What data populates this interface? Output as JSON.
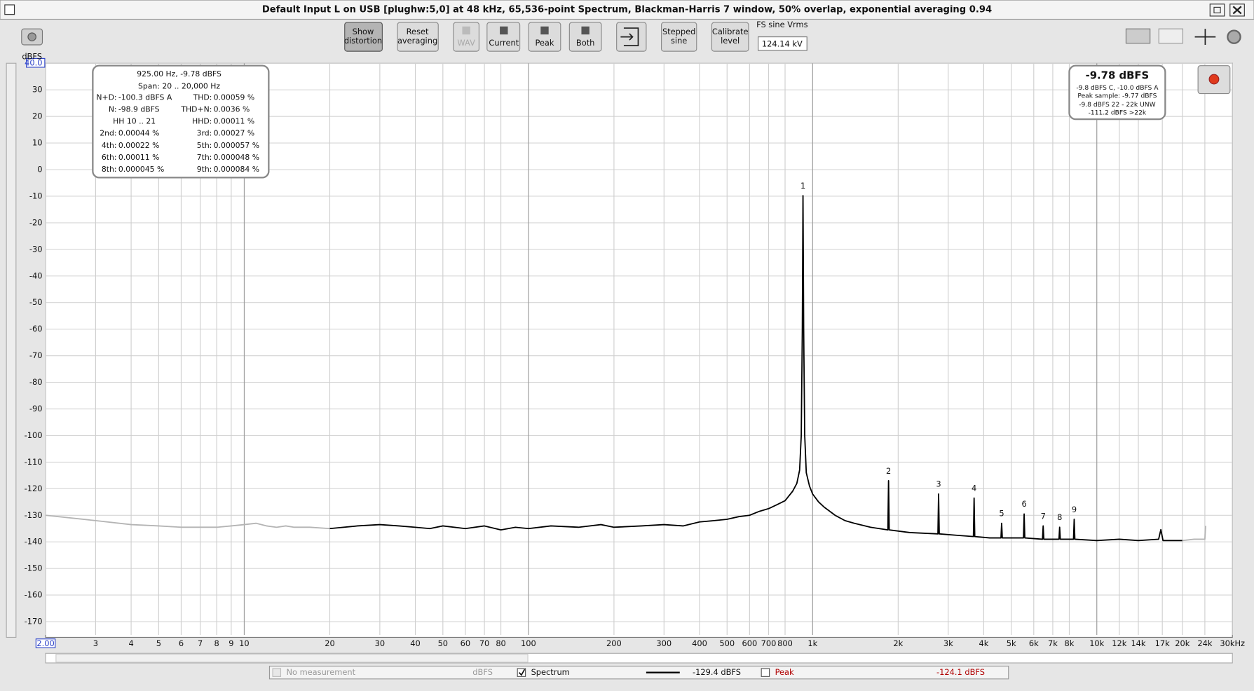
{
  "window": {
    "title": "Default Input L on USB [plughw:5,0] at 48 kHz, 65,536-point Spectrum, Blackman-Harris 7 window, 50% overlap, exponential averaging 0.94"
  },
  "toolbar": {
    "show_distortion": [
      "Show",
      "distortion"
    ],
    "reset_averaging": [
      "Reset",
      "averaging"
    ],
    "wav": "WAV",
    "current": "Current",
    "peak": "Peak",
    "both": "Both",
    "stepped_sine": [
      "Stepped",
      "sine"
    ],
    "calibrate_level": [
      "Calibrate",
      "level"
    ],
    "fs_label": "FS sine Vrms",
    "fs_value": "124.14 kV"
  },
  "distortion": {
    "header": "925.00 Hz, -9.78 dBFS",
    "span": "Span: 20 .. 20,000 Hz",
    "rows": [
      [
        "N+D:",
        "-100.3 dBFS A",
        "THD:",
        "0.00059 %"
      ],
      [
        "N:",
        "-98.9 dBFS",
        "THD+N:",
        "0.0036 %"
      ],
      [
        "HH 10 .. 21",
        "HHD:",
        "0.00011 %"
      ],
      [
        "2nd:",
        "0.00044 %",
        "3rd:",
        "0.00027 %"
      ],
      [
        "4th:",
        "0.00022 %",
        "5th:",
        "0.000057 %"
      ],
      [
        "6th:",
        "0.00011 %",
        "7th:",
        "0.000048 %"
      ],
      [
        "8th:",
        "0.000045 %",
        "9th:",
        "0.000084 %"
      ]
    ]
  },
  "level": {
    "main": "-9.78 dBFS",
    "lines": [
      "-9.8 dBFS C, -10.0 dBFS A",
      "Peak sample: -9.77 dBFS",
      "-9.8 dBFS 22 - 22k UNW",
      "-111.2 dBFS >22k"
    ]
  },
  "legend_bar": {
    "no_measurement": "No measurement",
    "unit": "dBFS",
    "spectrum_value": "-129.4 dBFS",
    "peak": "Peak",
    "peak_value": "-124.1 dBFS"
  },
  "chart_data": {
    "type": "line",
    "x_scale": "log",
    "grid": true,
    "y_label": "dBFS",
    "xlim": [
      2,
      30000
    ],
    "ylim": [
      -175,
      40
    ],
    "xticks": [
      {
        "value": 2,
        "label": "2.00"
      },
      3,
      4,
      5,
      6,
      7,
      8,
      9,
      10,
      20,
      30,
      40,
      50,
      60,
      70,
      80,
      100,
      200,
      300,
      400,
      500,
      600,
      700,
      800,
      {
        "value": 1000,
        "label": "1k"
      },
      {
        "value": 2000,
        "label": "2k"
      },
      {
        "value": 3000,
        "label": "3k"
      },
      {
        "value": 4000,
        "label": "4k"
      },
      {
        "value": 5000,
        "label": "5k"
      },
      {
        "value": 6000,
        "label": "6k"
      },
      {
        "value": 7000,
        "label": "7k"
      },
      {
        "value": 8000,
        "label": "8k"
      },
      {
        "value": 10000,
        "label": "10k"
      },
      {
        "value": 12000,
        "label": "12k"
      },
      {
        "value": 14000,
        "label": "14k"
      },
      {
        "value": 17000,
        "label": "17k"
      },
      {
        "value": 20000,
        "label": "20k"
      },
      {
        "value": 24000,
        "label": "24k"
      },
      {
        "value": 30000,
        "label": "30kHz"
      }
    ],
    "yticks": [
      {
        "value": 40,
        "label": "40.0"
      },
      30,
      20,
      10,
      0,
      -10,
      -20,
      -30,
      -40,
      -50,
      -60,
      -70,
      -80,
      -90,
      -100,
      -110,
      -120,
      -130,
      -140,
      -150,
      -160,
      -170
    ],
    "series": [
      {
        "name": "Spectrum",
        "color": "#000000",
        "x": [
          20,
          25,
          30,
          35,
          40,
          45,
          50,
          60,
          70,
          80,
          90,
          100,
          120,
          150,
          180,
          200,
          250,
          300,
          350,
          400,
          450,
          500,
          550,
          600,
          650,
          700,
          750,
          800,
          850,
          880,
          900,
          912,
          920,
          925,
          930,
          938,
          950,
          975,
          1000,
          1050,
          1100,
          1200,
          1300,
          1400,
          1600,
          1840,
          1850,
          1860,
          2200,
          2760,
          2775,
          2790,
          3200,
          3680,
          3700,
          3720,
          4200,
          4600,
          4625,
          4650,
          5520,
          5550,
          5580,
          6440,
          6475,
          6510,
          7360,
          7400,
          7440,
          8280,
          8325,
          8370,
          10000,
          12000,
          14000,
          16500,
          16800,
          17100,
          20000
        ],
        "values": [
          -135,
          -134,
          -133.5,
          -134,
          -134.5,
          -135,
          -134,
          -135,
          -134,
          -135.5,
          -134.5,
          -135,
          -134,
          -134.5,
          -133.5,
          -134.5,
          -134,
          -133.5,
          -134,
          -132.5,
          -132,
          -131.5,
          -130.5,
          -130,
          -128.5,
          -127.5,
          -126,
          -124.5,
          -121,
          -118,
          -113,
          -100,
          -60,
          -9.78,
          -60,
          -100,
          -114,
          -119,
          -122,
          -125,
          -127,
          -130,
          -132,
          -133,
          -134.5,
          -135.5,
          -117,
          -135.5,
          -136.5,
          -137,
          -122,
          -137,
          -137.5,
          -138,
          -123.5,
          -138,
          -138.5,
          -138.5,
          -133,
          -138.5,
          -138.5,
          -129.5,
          -138.5,
          -139,
          -134,
          -139,
          -139,
          -134.5,
          -139,
          -139,
          -131.5,
          -139,
          -139.5,
          -139,
          -139.5,
          -139,
          -135.4,
          -139.5,
          -139.5
        ]
      },
      {
        "color": "#b4b4b4",
        "x": [
          2,
          3,
          4,
          5,
          6,
          7,
          8,
          9,
          10,
          11,
          12,
          13,
          14,
          15,
          17,
          20
        ],
        "values": [
          -130,
          -132,
          -133.5,
          -134,
          -134.5,
          -134.5,
          -134.5,
          -134,
          -133.5,
          -133,
          -134,
          -134.5,
          -134,
          -134.5,
          -134.5,
          -135
        ]
      },
      {
        "color": "#b4b4b4",
        "x": [
          20000,
          22000,
          24000,
          24150
        ],
        "values": [
          -139.5,
          -139,
          -139,
          -134
        ]
      }
    ],
    "annotations": [
      {
        "text": "1",
        "x": 925
      },
      {
        "text": "2",
        "x": 1850
      },
      {
        "text": "3",
        "x": 2775
      },
      {
        "text": "4",
        "x": 3700
      },
      {
        "text": "5",
        "x": 4625
      },
      {
        "text": "6",
        "x": 5550
      },
      {
        "text": "7",
        "x": 6475
      },
      {
        "text": "8",
        "x": 7400
      },
      {
        "text": "9",
        "x": 8325
      }
    ]
  }
}
